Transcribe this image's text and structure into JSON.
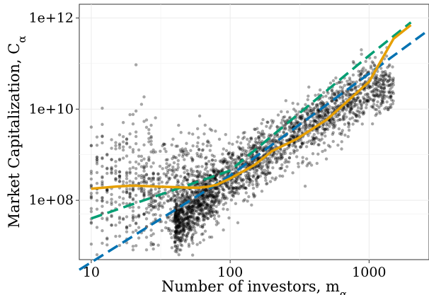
{
  "chart_data": {
    "type": "scatter",
    "title": "",
    "xlabel": "Number of investors, m",
    "xlabel_subscript": "α",
    "ylabel": "Market Capitalization, C",
    "ylabel_subscript": "α",
    "x_scale": "log10",
    "y_scale": "log10",
    "xlim": [
      8.2,
      2700
    ],
    "ylim": [
      5000000,
      2000000000000
    ],
    "x_ticks": [
      10,
      100,
      1000
    ],
    "x_tick_labels": [
      "10",
      "100",
      "1000"
    ],
    "y_ticks": [
      100000000,
      10000000000,
      1000000000000
    ],
    "y_tick_labels": [
      "1e+08",
      "1e+10",
      "1e+12"
    ],
    "grid": true,
    "legend": "none",
    "scatter_cloud": {
      "color": "#000000",
      "opacity": 0.35,
      "approx_points": 3000,
      "dense_band": [
        [
          40,
          30000000
        ],
        [
          100,
          300000000
        ],
        [
          300,
          3000000000
        ],
        [
          1000,
          30000000000
        ]
      ]
    },
    "series": [
      {
        "style": "dashed",
        "color": "#0072B2",
        "x": [
          8.2,
          100,
          1000,
          2700
        ],
        "y": [
          3000000,
          350000000,
          60000000000,
          550000000000
        ]
      },
      {
        "style": "dashed",
        "color": "#009E73",
        "x": [
          10,
          100,
          1000,
          2000
        ],
        "y": [
          40000000,
          450000000,
          150000000000,
          800000000000
        ]
      },
      {
        "style": "solid",
        "color": "#E69F00",
        "x": [
          10,
          15,
          20,
          30,
          40,
          50,
          60,
          70,
          80,
          100,
          150,
          200,
          300,
          500,
          700,
          1000,
          1500,
          2000
        ],
        "y": [
          180000000,
          200000000,
          210000000,
          200000000,
          195000000,
          190000000,
          190000000,
          200000000,
          220000000,
          300000000,
          600000000,
          1200000000,
          2200000000,
          6000000000,
          15000000000,
          40000000000,
          350000000000,
          700000000000
        ]
      }
    ]
  }
}
